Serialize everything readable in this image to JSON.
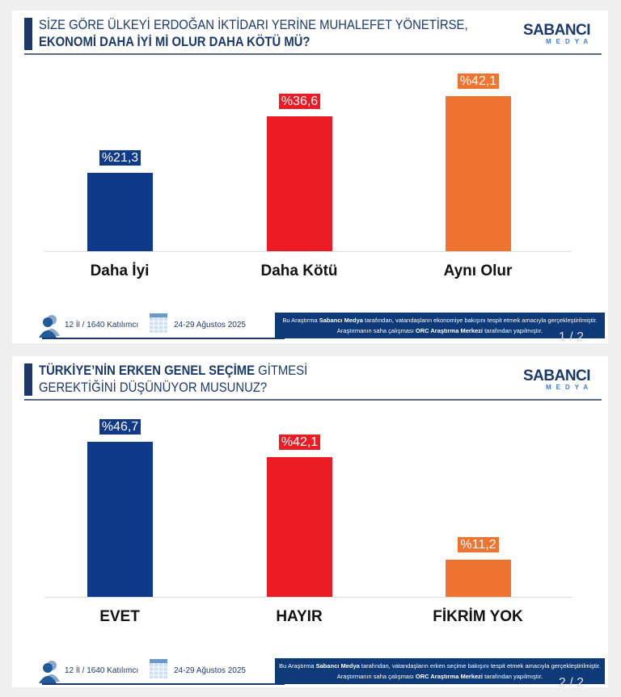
{
  "colors": {
    "blue": "#0f3a8a",
    "red": "#ec1c24",
    "orange": "#ee7531",
    "header": "#1b3a6b"
  },
  "logo": {
    "text": "SABANCI",
    "sub": "MEDYA"
  },
  "chart_data": [
    {
      "type": "bar",
      "title_line1": "SİZE GÖRE ÜLKEYİ ERDOĞAN İKTİDARI YERİNE MUHALEFET YÖNETİRSE,",
      "title_line2": "EKONOMİ DAHA İYİ Mİ OLUR DAHA KÖTÜ MÜ?",
      "categories": [
        "Daha İyi",
        "Daha Kötü",
        "Aynı Olur"
      ],
      "values": [
        21.3,
        36.6,
        42.1
      ],
      "labels": [
        "%21,3",
        "%36,6",
        "%42,1"
      ],
      "footer": {
        "participants": "12 İl / 1640 Katılımcı",
        "dates": "24-29 Ağustos 2025",
        "note_pre": "Bu Araştırma ",
        "note_b1": "Sabancı Medya",
        "note_mid": " tarafından, vatandaşların ekonomiye bakışını tespit etmek amacıyla gerçekleştirilmiştir. Araştırmanın saha çalışması ",
        "note_b2": "ORC Araştırma Merkezi",
        "note_post": " tarafından yapılmıştır."
      },
      "page": "1 / 2"
    },
    {
      "type": "bar",
      "title_b": "TÜRKİYE’NİN ERKEN GENEL SEÇİME",
      "title_rest": " GİTMESİ",
      "title_line2": "GEREKTİĞİNİ DÜŞÜNÜYOR MUSUNUZ?",
      "categories": [
        "EVET",
        "HAYIR",
        "FİKRİM YOK"
      ],
      "values": [
        46.7,
        42.1,
        11.2
      ],
      "labels": [
        "%46,7",
        "%42,1",
        "%11,2"
      ],
      "footer": {
        "participants": "12 İl / 1640 Katılımcı",
        "dates": "24-29 Ağustos 2025",
        "note_pre": "Bu Araştırma ",
        "note_b1": "Sabancı Medya",
        "note_mid": " tarafından, vatandaşların erken seçime bakışını tespit etmek amacıyla gerçekleştirilmiştir. Araştırmanın saha çalışması ",
        "note_b2": "ORC Araştırma Merkezi",
        "note_post": " tarafından yapılmıştır."
      },
      "page": "2 / 2"
    }
  ]
}
